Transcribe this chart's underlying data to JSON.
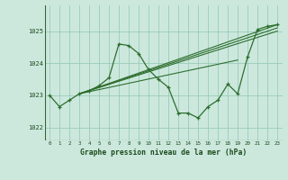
{
  "xlabel": "Graphe pression niveau de la mer (hPa)",
  "background_color": "#cce8dd",
  "grid_color": "#99ccbb",
  "line_color": "#2d6e2d",
  "ylim": [
    1021.6,
    1025.8
  ],
  "yticks": [
    1022,
    1023,
    1024,
    1025
  ],
  "xticks": [
    0,
    1,
    2,
    3,
    4,
    5,
    6,
    7,
    8,
    9,
    10,
    11,
    12,
    13,
    14,
    15,
    16,
    17,
    18,
    19,
    20,
    21,
    22,
    23
  ],
  "line_main": {
    "x": [
      0,
      1,
      2,
      3,
      4,
      5,
      6,
      7,
      8,
      9,
      10,
      11,
      12,
      13,
      14,
      15,
      16,
      17,
      18,
      19,
      20,
      21,
      22,
      23
    ],
    "y": [
      1023.0,
      1022.65,
      1022.85,
      1023.05,
      1023.15,
      1023.3,
      1023.55,
      1024.6,
      1024.55,
      1024.3,
      1023.8,
      1023.5,
      1023.25,
      1022.45,
      1022.45,
      1022.3,
      1022.65,
      1022.85,
      1023.35,
      1023.05,
      1024.2,
      1025.05,
      1025.15,
      1025.2
    ]
  },
  "trend_lines": [
    {
      "x": [
        3,
        23
      ],
      "y": [
        1023.05,
        1025.2
      ]
    },
    {
      "x": [
        3,
        23
      ],
      "y": [
        1023.05,
        1025.1
      ]
    },
    {
      "x": [
        3,
        23
      ],
      "y": [
        1023.05,
        1025.0
      ]
    },
    {
      "x": [
        3,
        19
      ],
      "y": [
        1023.05,
        1024.1
      ]
    }
  ]
}
